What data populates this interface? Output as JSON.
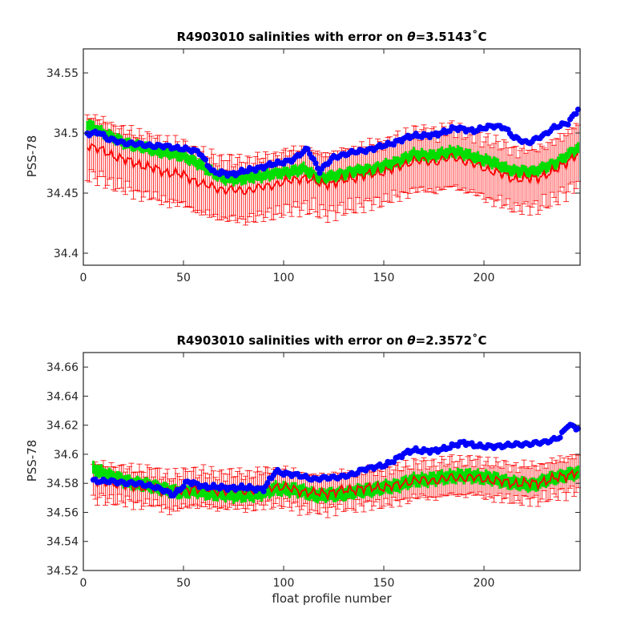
{
  "chart_data": [
    {
      "type": "line",
      "title_prefix": "R4903010 salinities with error on ",
      "title_theta": "θ",
      "title_value": "=3.5143",
      "title_unit": "˚C",
      "xlabel": "",
      "ylabel": "PSS-78",
      "xlim": [
        0,
        248
      ],
      "ylim": [
        34.39,
        34.57
      ],
      "xticks": [
        0,
        50,
        100,
        150,
        200
      ],
      "yticks": [
        34.4,
        34.45,
        34.5,
        34.55
      ],
      "ytick_labels": [
        "34.4",
        "34.45",
        "34.5",
        "34.55"
      ],
      "colors": {
        "raw": "#0000ff",
        "calibrated": "#ff0000",
        "mapped": "#00dd00"
      },
      "raw_anchors": [
        [
          2,
          34.499
        ],
        [
          8,
          34.501
        ],
        [
          12,
          34.495
        ],
        [
          20,
          34.492
        ],
        [
          30,
          34.49
        ],
        [
          40,
          34.489
        ],
        [
          50,
          34.487
        ],
        [
          58,
          34.484
        ],
        [
          65,
          34.467
        ],
        [
          75,
          34.466
        ],
        [
          85,
          34.47
        ],
        [
          95,
          34.474
        ],
        [
          105,
          34.478
        ],
        [
          112,
          34.487
        ],
        [
          118,
          34.468
        ],
        [
          125,
          34.48
        ],
        [
          135,
          34.484
        ],
        [
          145,
          34.487
        ],
        [
          155,
          34.492
        ],
        [
          165,
          34.498
        ],
        [
          175,
          34.498
        ],
        [
          185,
          34.504
        ],
        [
          195,
          34.502
        ],
        [
          205,
          34.506
        ],
        [
          210,
          34.505
        ],
        [
          215,
          34.496
        ],
        [
          222,
          34.492
        ],
        [
          230,
          34.498
        ],
        [
          235,
          34.505
        ],
        [
          242,
          34.508
        ],
        [
          247,
          34.52
        ]
      ],
      "cal_anchors": [
        [
          2,
          34.49
        ],
        [
          10,
          34.485
        ],
        [
          20,
          34.478
        ],
        [
          30,
          34.473
        ],
        [
          40,
          34.468
        ],
        [
          50,
          34.465
        ],
        [
          60,
          34.457
        ],
        [
          70,
          34.453
        ],
        [
          80,
          34.452
        ],
        [
          90,
          34.455
        ],
        [
          100,
          34.459
        ],
        [
          110,
          34.463
        ],
        [
          118,
          34.458
        ],
        [
          125,
          34.458
        ],
        [
          135,
          34.463
        ],
        [
          145,
          34.466
        ],
        [
          155,
          34.47
        ],
        [
          165,
          34.477
        ],
        [
          175,
          34.476
        ],
        [
          185,
          34.48
        ],
        [
          195,
          34.474
        ],
        [
          205,
          34.468
        ],
        [
          215,
          34.462
        ],
        [
          225,
          34.462
        ],
        [
          235,
          34.468
        ],
        [
          247,
          34.483
        ]
      ],
      "map_anchors": [
        [
          2,
          34.507
        ],
        [
          10,
          34.5
        ],
        [
          20,
          34.492
        ],
        [
          30,
          34.488
        ],
        [
          40,
          34.484
        ],
        [
          50,
          34.481
        ],
        [
          60,
          34.472
        ],
        [
          70,
          34.462
        ],
        [
          80,
          34.462
        ],
        [
          90,
          34.465
        ],
        [
          100,
          34.467
        ],
        [
          110,
          34.47
        ],
        [
          118,
          34.462
        ],
        [
          125,
          34.464
        ],
        [
          135,
          34.468
        ],
        [
          145,
          34.47
        ],
        [
          155,
          34.475
        ],
        [
          165,
          34.482
        ],
        [
          175,
          34.481
        ],
        [
          185,
          34.485
        ],
        [
          195,
          34.48
        ],
        [
          205,
          34.475
        ],
        [
          215,
          34.468
        ],
        [
          225,
          34.468
        ],
        [
          235,
          34.474
        ],
        [
          247,
          34.487
        ]
      ],
      "error_half_width": 0.025
    },
    {
      "type": "line",
      "title_prefix": "R4903010 salinities with error on ",
      "title_theta": "θ",
      "title_value": "=2.3572",
      "title_unit": "˚C",
      "xlabel": "float profile number",
      "ylabel": "PSS-78",
      "xlim": [
        0,
        248
      ],
      "ylim": [
        34.52,
        34.67
      ],
      "xticks": [
        0,
        50,
        100,
        150,
        200
      ],
      "yticks": [
        34.52,
        34.54,
        34.56,
        34.58,
        34.6,
        34.62,
        34.64,
        34.66
      ],
      "ytick_labels": [
        "34.52",
        "34.54",
        "34.56",
        "34.58",
        "34.6",
        "34.62",
        "34.64",
        "34.66"
      ],
      "colors": {
        "raw": "#0000ff",
        "calibrated": "#ff0000",
        "mapped": "#00dd00"
      },
      "raw_anchors": [
        [
          5,
          34.582
        ],
        [
          15,
          34.581
        ],
        [
          25,
          34.58
        ],
        [
          35,
          34.578
        ],
        [
          45,
          34.572
        ],
        [
          52,
          34.581
        ],
        [
          60,
          34.578
        ],
        [
          70,
          34.577
        ],
        [
          80,
          34.577
        ],
        [
          90,
          34.576
        ],
        [
          96,
          34.588
        ],
        [
          105,
          34.586
        ],
        [
          115,
          34.583
        ],
        [
          125,
          34.584
        ],
        [
          135,
          34.586
        ],
        [
          140,
          34.59
        ],
        [
          150,
          34.592
        ],
        [
          160,
          34.6
        ],
        [
          165,
          34.603
        ],
        [
          175,
          34.602
        ],
        [
          185,
          34.606
        ],
        [
          190,
          34.608
        ],
        [
          200,
          34.605
        ],
        [
          210,
          34.606
        ],
        [
          220,
          34.607
        ],
        [
          230,
          34.608
        ],
        [
          238,
          34.612
        ],
        [
          242,
          34.62
        ],
        [
          247,
          34.618
        ]
      ],
      "cal_anchors": [
        [
          5,
          34.581
        ],
        [
          15,
          34.58
        ],
        [
          25,
          34.578
        ],
        [
          35,
          34.577
        ],
        [
          45,
          34.573
        ],
        [
          55,
          34.577
        ],
        [
          65,
          34.575
        ],
        [
          75,
          34.575
        ],
        [
          85,
          34.575
        ],
        [
          95,
          34.578
        ],
        [
          105,
          34.576
        ],
        [
          115,
          34.573
        ],
        [
          125,
          34.574
        ],
        [
          135,
          34.576
        ],
        [
          145,
          34.577
        ],
        [
          155,
          34.578
        ],
        [
          165,
          34.582
        ],
        [
          175,
          34.582
        ],
        [
          185,
          34.584
        ],
        [
          195,
          34.584
        ],
        [
          205,
          34.582
        ],
        [
          215,
          34.58
        ],
        [
          225,
          34.58
        ],
        [
          235,
          34.583
        ],
        [
          247,
          34.588
        ]
      ],
      "map_anchors": [
        [
          5,
          34.59
        ],
        [
          15,
          34.584
        ],
        [
          25,
          34.58
        ],
        [
          35,
          34.578
        ],
        [
          45,
          34.574
        ],
        [
          55,
          34.575
        ],
        [
          65,
          34.573
        ],
        [
          75,
          34.572
        ],
        [
          85,
          34.572
        ],
        [
          95,
          34.576
        ],
        [
          105,
          34.576
        ],
        [
          115,
          34.572
        ],
        [
          125,
          34.572
        ],
        [
          135,
          34.574
        ],
        [
          145,
          34.576
        ],
        [
          155,
          34.578
        ],
        [
          165,
          34.582
        ],
        [
          175,
          34.583
        ],
        [
          185,
          34.585
        ],
        [
          195,
          34.585
        ],
        [
          205,
          34.583
        ],
        [
          215,
          34.58
        ],
        [
          225,
          34.579
        ],
        [
          235,
          34.584
        ],
        [
          247,
          34.587
        ]
      ],
      "error_half_width": 0.012
    }
  ]
}
